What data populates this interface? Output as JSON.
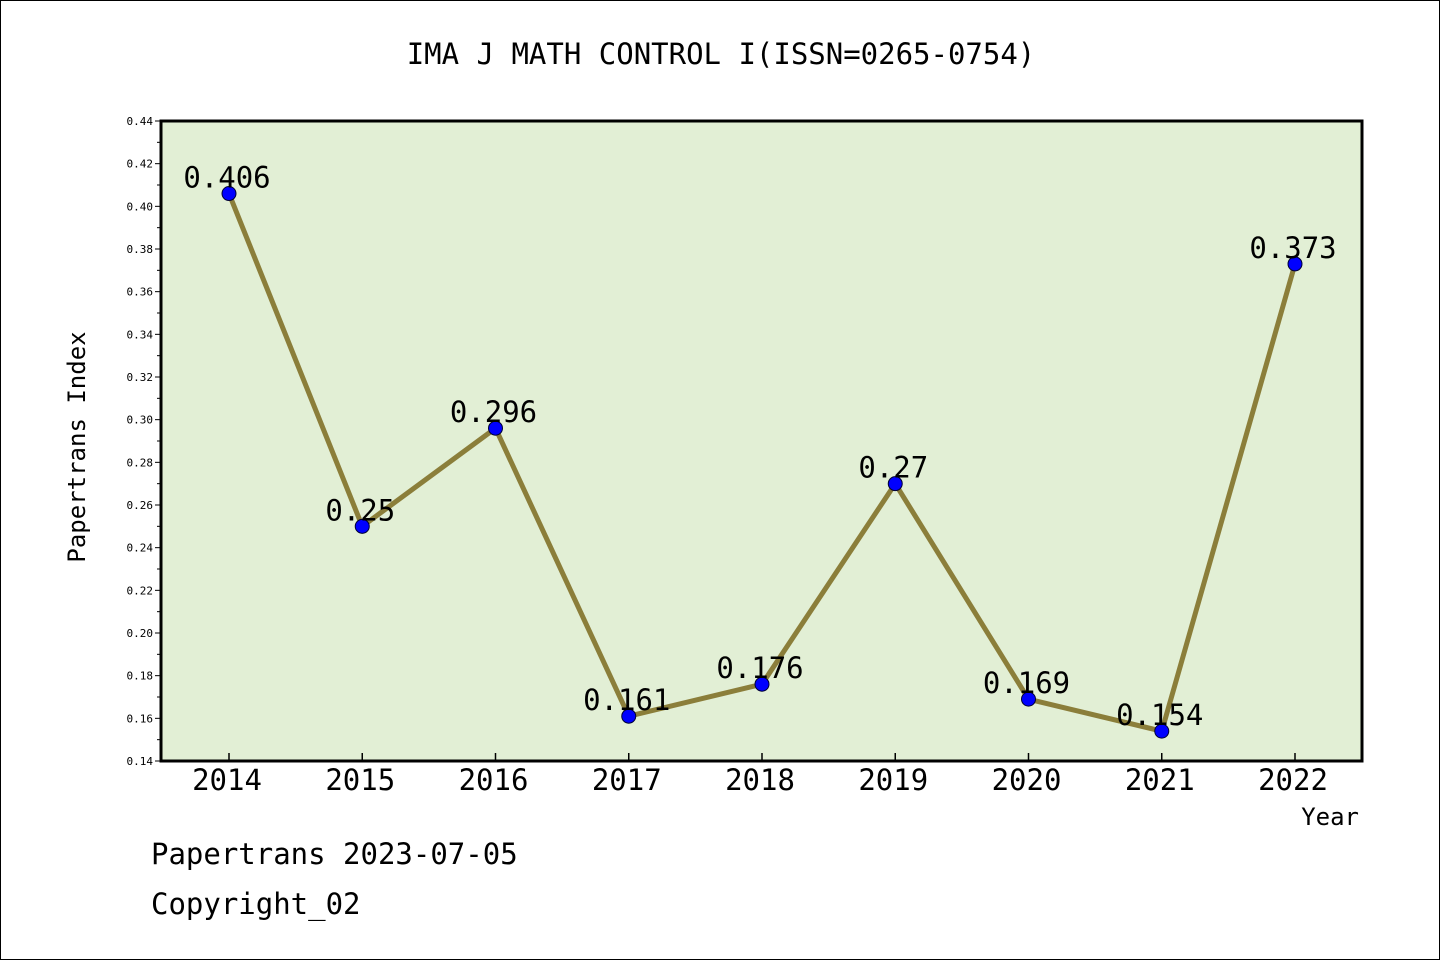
{
  "chart_data": {
    "type": "line",
    "title": "IMA J MATH CONTROL I(ISSN=0265-0754)",
    "xlabel": "Year",
    "ylabel": "Papertrans Index",
    "categories": [
      "2014",
      "2015",
      "2016",
      "2017",
      "2018",
      "2019",
      "2020",
      "2021",
      "2022"
    ],
    "values": [
      0.406,
      0.25,
      0.296,
      0.161,
      0.176,
      0.27,
      0.169,
      0.154,
      0.373
    ],
    "data_labels": [
      "0.406",
      "0.25",
      "0.296",
      "0.161",
      "0.176",
      "0.27",
      "0.169",
      "0.154",
      "0.373"
    ],
    "ylim": [
      0.14,
      0.44
    ],
    "yticks": [
      "0.14",
      "0.16",
      "0.18",
      "0.20",
      "0.22",
      "0.24",
      "0.26",
      "0.28",
      "0.30",
      "0.32",
      "0.34",
      "0.36",
      "0.38",
      "0.40",
      "0.42",
      "0.44"
    ],
    "grid": false,
    "colors": {
      "plot_background": "#e2efd5",
      "line": "#8b7e3a",
      "marker": "#0000ff",
      "axis": "#000000"
    }
  },
  "footer": {
    "date_text": "Papertrans 2023-07-05",
    "copyright_text": "Copyright_02"
  }
}
